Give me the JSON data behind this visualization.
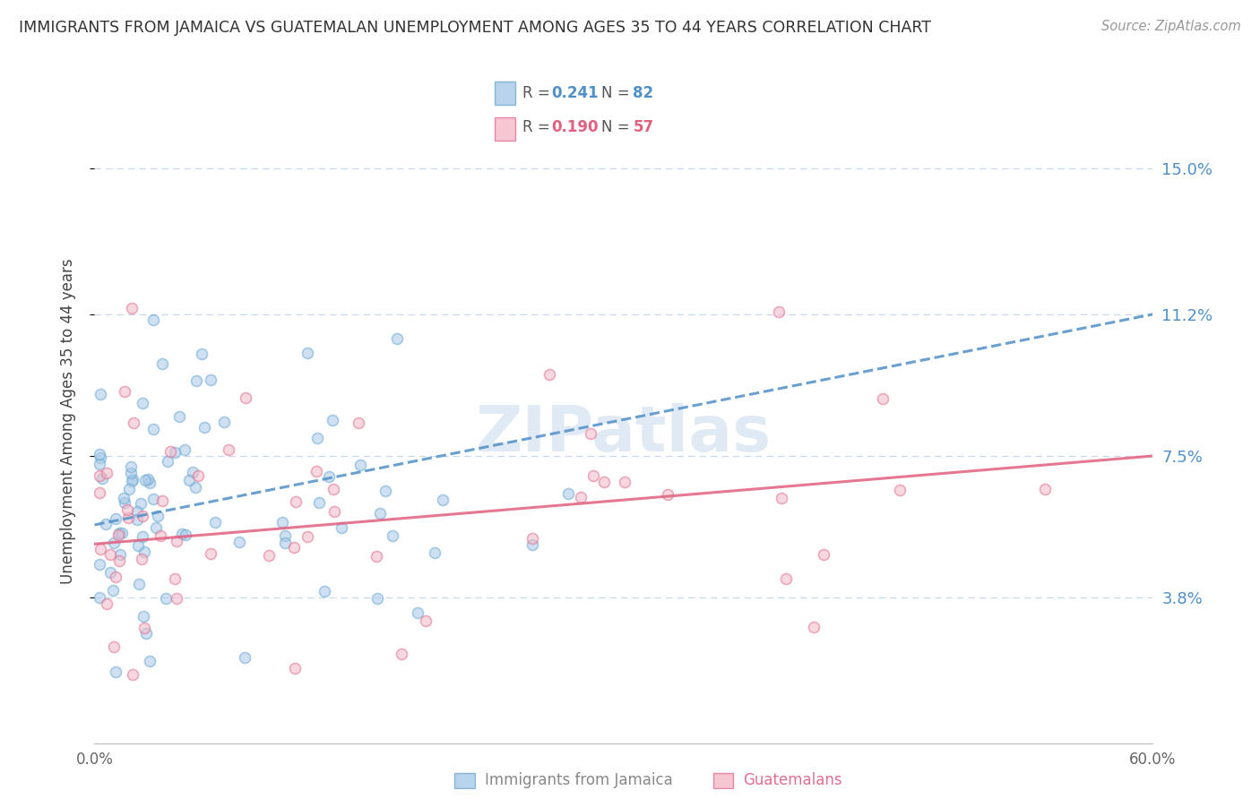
{
  "title": "IMMIGRANTS FROM JAMAICA VS GUATEMALAN UNEMPLOYMENT AMONG AGES 35 TO 44 YEARS CORRELATION CHART",
  "source": "Source: ZipAtlas.com",
  "ylabel": "Unemployment Among Ages 35 to 44 years",
  "xlim": [
    0.0,
    0.6
  ],
  "ylim": [
    0.0,
    0.168
  ],
  "yticks": [
    0.038,
    0.075,
    0.112,
    0.15
  ],
  "ytick_labels": [
    "3.8%",
    "7.5%",
    "11.2%",
    "15.0%"
  ],
  "xtick_labels": [
    "0.0%",
    "",
    "",
    "",
    "",
    "",
    "60.0%"
  ],
  "xticks": [
    0.0,
    0.1,
    0.2,
    0.3,
    0.4,
    0.5,
    0.6
  ],
  "legend_R1": "0.241",
  "legend_N1": "82",
  "legend_R2": "0.190",
  "legend_N2": "57",
  "series1_color": "#a8c8e8",
  "series1_edge": "#6aaad4",
  "series2_color": "#f4b8c8",
  "series2_edge": "#e07090",
  "line1_color": "#5090c8",
  "line2_color": "#e06080",
  "background_color": "#ffffff",
  "grid_color": "#c8d8ec",
  "title_color": "#333333",
  "axis_label_color": "#444444",
  "right_label_color": "#5090c8",
  "watermark_color": "#dde8f4",
  "marker_size": 75,
  "marker_alpha": 0.55,
  "line_width": 2.2
}
